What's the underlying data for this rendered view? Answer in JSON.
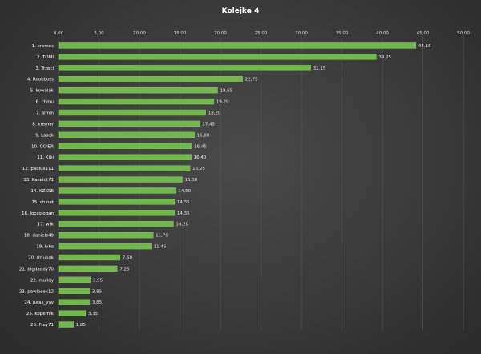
{
  "chart_data": {
    "type": "bar",
    "orientation": "horizontal",
    "title": "Kolejka  4",
    "xlim": [
      0,
      50
    ],
    "tick_values": [
      0,
      5,
      10,
      15,
      20,
      25,
      30,
      35,
      40,
      45,
      50
    ],
    "tick_labels": [
      "0,00",
      "5,00",
      "10,00",
      "15,00",
      "20,00",
      "25,00",
      "30,00",
      "35,00",
      "40,00",
      "45,00",
      "50,00"
    ],
    "grid": true,
    "colors": {
      "bar": "#70b84a",
      "bar_edge": "#8ed066"
    },
    "categories": [
      "1. kremos",
      "2. TOMI",
      "3. Trzeci",
      "4. Rookboss",
      "5. kowalak",
      "6. chmu",
      "7. almin",
      "8. kremer",
      "9. Lasek",
      "10. GOIER",
      "11. Kibi",
      "12. paolus111",
      "13. Kazelot71",
      "14. KZKS6",
      "15. chinet",
      "16. loccologan",
      "17. wtk",
      "18. daniels49",
      "19. lvka",
      "20. dziubak",
      "21. bigdaddy70",
      "22. mulldy",
      "23. pawlosek12",
      "24. juras_yyy",
      "25. kopernik",
      "26. Frey71"
    ],
    "values": [
      44.15,
      39.25,
      31.15,
      22.75,
      19.65,
      19.2,
      18.2,
      17.45,
      16.8,
      16.45,
      16.4,
      16.25,
      15.3,
      14.5,
      14.35,
      14.35,
      14.2,
      11.7,
      11.45,
      7.6,
      7.25,
      3.95,
      3.85,
      3.85,
      3.35,
      1.85
    ],
    "value_labels": [
      "44,15",
      "39,25",
      "31,15",
      "22,75",
      "19,65",
      "19,20",
      "18,20",
      "17,45",
      "16,80",
      "16,45",
      "16,40",
      "16,25",
      "15,30",
      "14,50",
      "14,35",
      "14,35",
      "14,20",
      "11,70",
      "11,45",
      "7,60",
      "7,25",
      "3,95",
      "3,85",
      "3,85",
      "3,35",
      "1,85"
    ]
  }
}
